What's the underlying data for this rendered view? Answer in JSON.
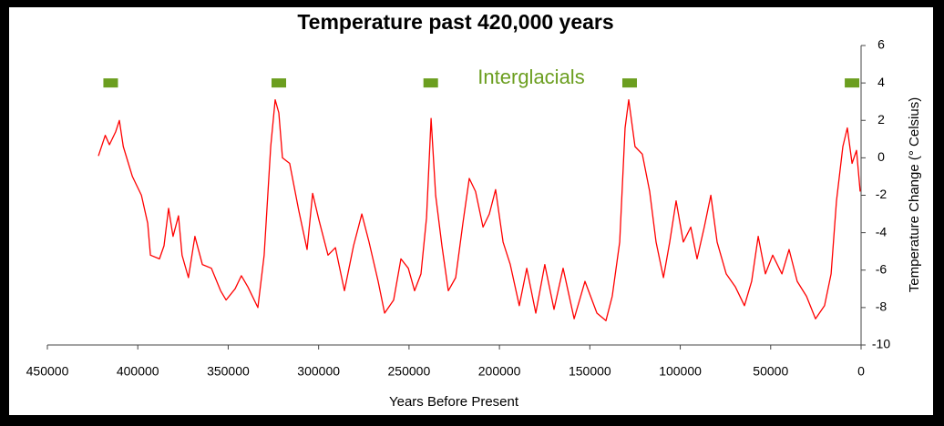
{
  "chart_data": {
    "type": "line",
    "title": "Temperature past 420,000 years",
    "x_label": "Years Before Present",
    "y_label": "Temperature Change (° Celsius)",
    "color": "#ff0000",
    "x": [
      421800,
      418000,
      415700,
      412200,
      410200,
      408000,
      403000,
      398000,
      394500,
      393000,
      388000,
      385500,
      383000,
      380500,
      377500,
      375500,
      372000,
      368400,
      364300,
      359300,
      354200,
      351200,
      346200,
      342700,
      339100,
      333600,
      330100,
      326500,
      324000,
      322000,
      320000,
      316000,
      311000,
      306400,
      303300,
      299900,
      294800,
      290700,
      285700,
      280700,
      276100,
      272100,
      267100,
      263500,
      258500,
      254500,
      250400,
      246900,
      243400,
      240300,
      237800,
      235300,
      231800,
      228300,
      224200,
      220200,
      216700,
      213200,
      209100,
      205600,
      202100,
      198000,
      194000,
      189000,
      184900,
      179900,
      174900,
      169800,
      164800,
      158700,
      152700,
      146100,
      141100,
      137600,
      133500,
      130500,
      128500,
      125000,
      121000,
      116900,
      113400,
      109300,
      105800,
      102300,
      98300,
      94200,
      90700,
      86700,
      83100,
      79600,
      74600,
      69500,
      64500,
      60500,
      56900,
      52900,
      48900,
      43800,
      39800,
      35300,
      30200,
      25200,
      20200,
      16600,
      13600,
      10100,
      7600,
      5000,
      2500,
      500
    ],
    "values": [
      0.1,
      1.2,
      0.7,
      1.4,
      2.0,
      0.6,
      -1.0,
      -2.0,
      -3.5,
      -5.2,
      -5.4,
      -4.7,
      -2.7,
      -4.2,
      -3.1,
      -5.2,
      -6.4,
      -4.2,
      -5.7,
      -5.9,
      -7.1,
      -7.6,
      -7.0,
      -6.3,
      -6.9,
      -8.0,
      -5.2,
      0.6,
      3.1,
      2.4,
      0.0,
      -0.3,
      -2.8,
      -4.9,
      -1.9,
      -3.3,
      -5.2,
      -4.8,
      -7.1,
      -4.7,
      -3.0,
      -4.5,
      -6.6,
      -8.3,
      -7.6,
      -5.4,
      -5.9,
      -7.1,
      -6.2,
      -3.2,
      2.1,
      -2.0,
      -4.7,
      -7.1,
      -6.4,
      -3.5,
      -1.1,
      -1.8,
      -3.7,
      -3.0,
      -1.7,
      -4.5,
      -5.7,
      -7.9,
      -5.9,
      -8.3,
      -5.7,
      -8.1,
      -5.9,
      -8.6,
      -6.6,
      -8.3,
      -8.7,
      -7.4,
      -4.5,
      1.6,
      3.1,
      0.6,
      0.2,
      -1.8,
      -4.5,
      -6.4,
      -4.5,
      -2.3,
      -4.5,
      -3.7,
      -5.4,
      -3.7,
      -2.0,
      -4.5,
      -6.2,
      -6.9,
      -7.9,
      -6.6,
      -4.2,
      -6.2,
      -5.2,
      -6.2,
      -4.9,
      -6.6,
      -7.4,
      -8.6,
      -7.9,
      -6.2,
      -2.3,
      0.6,
      1.6,
      -0.3,
      0.4,
      -1.8
    ],
    "interglacials": {
      "label": "Interglacials",
      "color": "#6b9e1f",
      "x": [
        415000,
        322000,
        238000,
        128000,
        5000
      ],
      "values": [
        4,
        4,
        4,
        4,
        4
      ]
    },
    "xlim": [
      450000,
      0
    ],
    "xticks": [
      450000,
      400000,
      350000,
      300000,
      250000,
      200000,
      150000,
      100000,
      50000,
      0
    ],
    "ylim": [
      -10,
      6
    ],
    "yticks": [
      -10,
      -8,
      -6,
      -4,
      -2,
      0,
      2,
      4,
      6
    ]
  }
}
